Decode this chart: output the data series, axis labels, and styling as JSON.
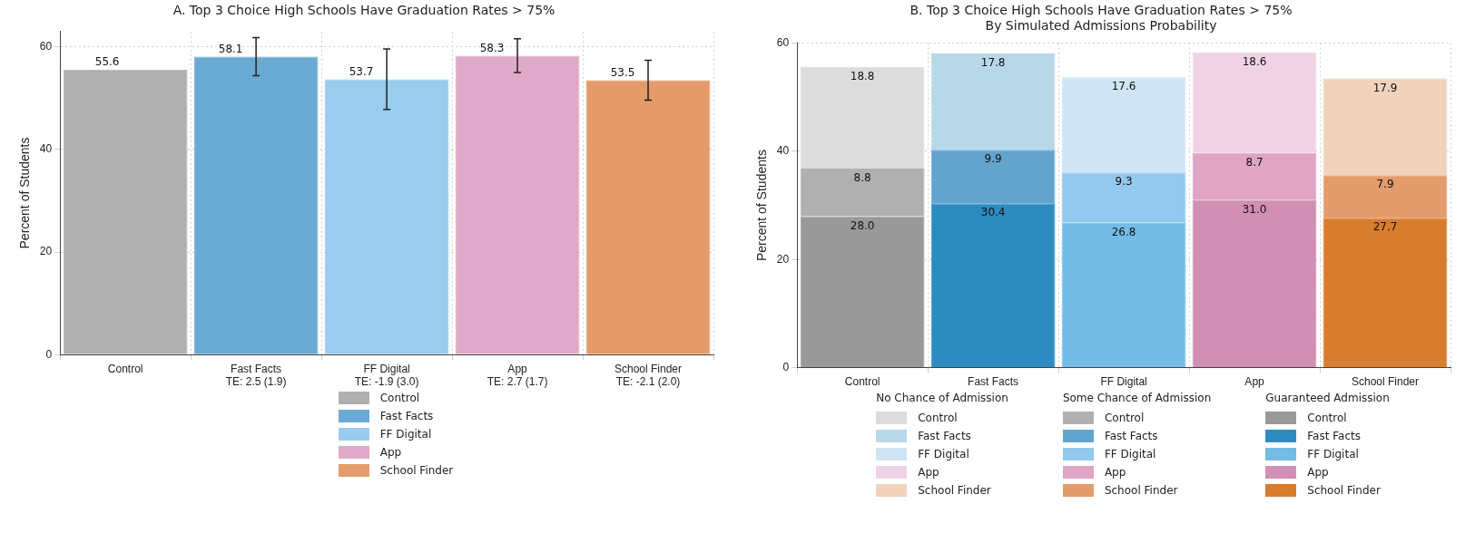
{
  "chart_data": [
    {
      "type": "bar",
      "title": "A. Top 3 Choice High Schools Have Graduation Rates > 75%",
      "ylabel": "Percent of Students",
      "categories": [
        "Control",
        "Fast Facts\nTE: 2.5 (1.9)",
        "FF Digital\nTE: -1.9 (3.0)",
        "App\nTE: 2.7 (1.7)",
        "School Finder\nTE: -2.1 (2.0)"
      ],
      "series": [
        {
          "name": "Control",
          "color": "#b0b0b0",
          "values": [
            55.6,
            null,
            null,
            null,
            null
          ]
        },
        {
          "name": "Fast Facts",
          "color": "#6aaad3",
          "values": [
            null,
            58.1,
            null,
            null,
            null
          ],
          "errors": [
            null,
            3.7,
            null,
            null,
            null
          ]
        },
        {
          "name": "FF Digital",
          "color": "#99cced",
          "values": [
            null,
            null,
            53.7,
            null,
            null
          ],
          "errors": [
            null,
            null,
            5.9,
            null,
            null
          ]
        },
        {
          "name": "App",
          "color": "#dfaac9",
          "values": [
            null,
            null,
            null,
            58.3,
            null
          ],
          "errors": [
            null,
            null,
            null,
            3.3,
            null
          ]
        },
        {
          "name": "School Finder",
          "color": "#e59b6a",
          "values": [
            null,
            null,
            null,
            null,
            53.5
          ],
          "errors": [
            null,
            null,
            null,
            null,
            3.9
          ]
        }
      ],
      "ylim": [
        0,
        63
      ],
      "yticks": [
        0,
        20,
        40,
        60
      ],
      "grid": true,
      "legend": "bottom",
      "data_labels": true
    },
    {
      "type": "bar",
      "title": "B. Top 3 Choice High Schools Have Graduation Rates > 75%",
      "subtitle": "By Simulated Admissions Probability",
      "ylabel": "Percent of Students",
      "categories": [
        "Control",
        "Fast Facts",
        "FF Digital",
        "App",
        "School Finder"
      ],
      "stacked": true,
      "annotations": [
        "No Chance of Admission",
        "Some Chance of Admission",
        "Guaranteed Admission"
      ],
      "series": [
        {
          "name": "Control",
          "color": "#999999",
          "values": [
            28.0,
            null,
            null,
            null,
            null
          ],
          "value_labels": [
            "28.0",
            null,
            null,
            null,
            null
          ]
        },
        {
          "name": "Fast Facts",
          "color": "#2e8bc0",
          "values": [
            null,
            30.4,
            null,
            null,
            null
          ],
          "value_labels": [
            null,
            "30.4",
            null,
            null,
            null
          ]
        },
        {
          "name": "FF Digital",
          "color": "#72bce6",
          "values": [
            null,
            null,
            26.8,
            null,
            null
          ],
          "value_labels": [
            null,
            null,
            "26.8",
            null,
            null
          ]
        },
        {
          "name": "App",
          "color": "#d08fb3",
          "values": [
            null,
            null,
            null,
            31.0,
            null
          ],
          "value_labels": [
            null,
            null,
            null,
            "31.0",
            null
          ]
        },
        {
          "name": "School Finder",
          "color": "#d87c2e",
          "values": [
            null,
            null,
            null,
            null,
            27.7
          ],
          "value_labels": [
            null,
            null,
            null,
            null,
            "27.7"
          ]
        },
        {
          "name": "Control",
          "color": "#b0b0b0",
          "values": [
            8.8,
            null,
            null,
            null,
            null
          ],
          "value_labels": [
            "8.8",
            null,
            null,
            null,
            null
          ]
        },
        {
          "name": "Fast Facts",
          "color": "#64a3cc",
          "values": [
            null,
            9.9,
            null,
            null,
            null
          ],
          "value_labels": [
            null,
            "9.9",
            null,
            null,
            null
          ]
        },
        {
          "name": "FF Digital",
          "color": "#93c9ec",
          "values": [
            null,
            null,
            9.3,
            null,
            null
          ],
          "value_labels": [
            null,
            null,
            "9.3",
            null,
            null
          ]
        },
        {
          "name": "App",
          "color": "#e0a4c4",
          "values": [
            null,
            null,
            null,
            8.7,
            null
          ],
          "value_labels": [
            null,
            null,
            null,
            "8.7",
            null
          ]
        },
        {
          "name": "School Finder",
          "color": "#e39c6b",
          "values": [
            null,
            null,
            null,
            null,
            7.9
          ],
          "value_labels": [
            null,
            null,
            null,
            null,
            "7.9"
          ]
        },
        {
          "name": "Control",
          "color": "#dcdcdc",
          "values": [
            18.8,
            null,
            null,
            null,
            null
          ],
          "value_labels": [
            "18.8",
            null,
            null,
            null,
            null
          ]
        },
        {
          "name": "Fast Facts",
          "color": "#b8d8ea",
          "values": [
            null,
            17.8,
            null,
            null,
            null
          ],
          "value_labels": [
            null,
            "17.8",
            null,
            null,
            null
          ]
        },
        {
          "name": "FF Digital",
          "color": "#cfe5f5",
          "values": [
            null,
            null,
            17.6,
            null,
            null
          ],
          "value_labels": [
            null,
            null,
            "17.6",
            null,
            null
          ]
        },
        {
          "name": "App",
          "color": "#efd3e5",
          "values": [
            null,
            null,
            null,
            18.6,
            null
          ],
          "value_labels": [
            null,
            null,
            null,
            "18.6",
            null
          ]
        },
        {
          "name": "School Finder",
          "color": "#f1d3bc",
          "values": [
            null,
            null,
            null,
            null,
            17.9
          ],
          "value_labels": [
            null,
            null,
            null,
            null,
            "17.9"
          ]
        }
      ],
      "ylim": [
        0,
        60
      ],
      "yticks": [
        0,
        20,
        40,
        60
      ],
      "grid": true,
      "legend": "bottom"
    }
  ]
}
